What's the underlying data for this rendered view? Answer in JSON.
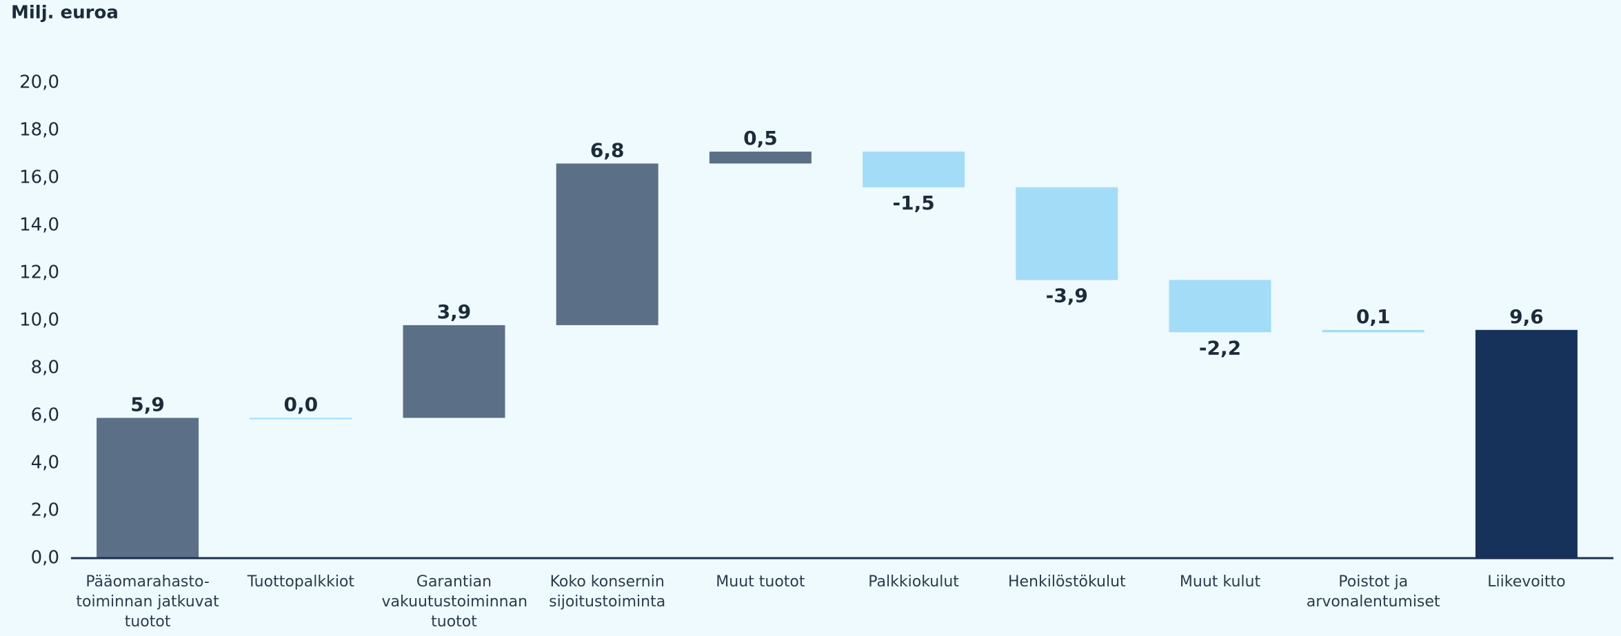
{
  "chart_data": {
    "type": "waterfall",
    "ylabel": "Milj. euroa",
    "categories": [
      "Pääomarahasto-toiminnan jatkuvat tuotot",
      "Tuottopalkkiot",
      "Garantian vakuutustoiminnan tuotot",
      "Koko konsernin sijoitustoiminta",
      "Muut tuotot",
      "Palkkiokulut",
      "Henkilöstökulut",
      "Muut kulut",
      "Poistot ja arvonalentumiset",
      "Liikevoitto"
    ],
    "values": [
      5.9,
      0.0,
      3.9,
      6.8,
      0.5,
      -1.5,
      -3.9,
      -2.2,
      0.1,
      9.6
    ],
    "value_labels": [
      "5,9",
      "0,0",
      "3,9",
      "6,8",
      "0,5",
      "-1,5",
      "-3,9",
      "-2,2",
      "0,1",
      "9,6"
    ],
    "is_total": [
      false,
      false,
      false,
      false,
      false,
      false,
      false,
      false,
      false,
      true
    ],
    "colors": [
      "#5b6f87",
      "#a3dcf7",
      "#5b6f87",
      "#5b6f87",
      "#5b6f87",
      "#a3dcf7",
      "#a3dcf7",
      "#a3dcf7",
      "#a3dcf7",
      "#16325a"
    ],
    "ylim": [
      0,
      20
    ],
    "yticks": [
      {
        "value": 0,
        "label": "0,0"
      },
      {
        "value": 2,
        "label": "2,0"
      },
      {
        "value": 4,
        "label": "4,0"
      },
      {
        "value": 6,
        "label": "6,0"
      },
      {
        "value": 8,
        "label": "8,0"
      },
      {
        "value": 10,
        "label": "10,0"
      },
      {
        "value": 12,
        "label": "12,0"
      },
      {
        "value": 14,
        "label": "14,0"
      },
      {
        "value": 16,
        "label": "16,0"
      },
      {
        "value": 18,
        "label": "18,0"
      },
      {
        "value": 20,
        "label": "20,0"
      }
    ],
    "grid": false
  }
}
